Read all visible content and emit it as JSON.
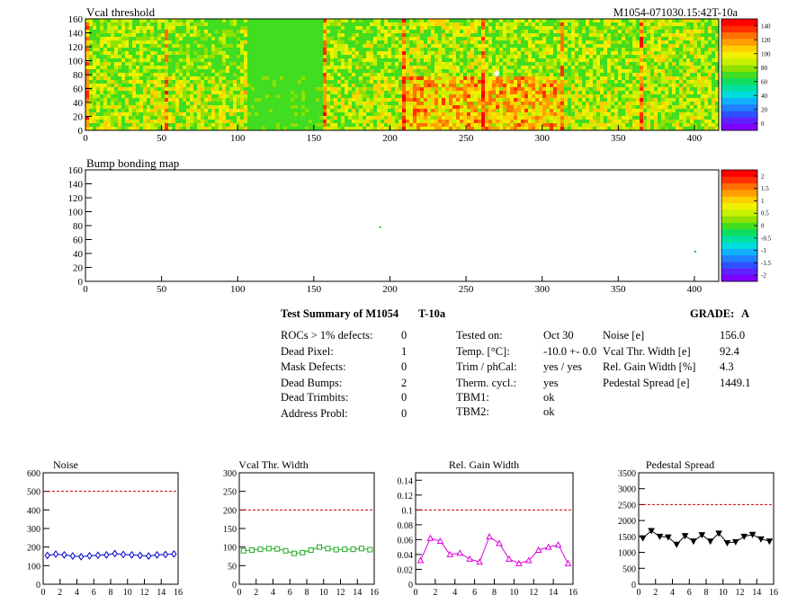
{
  "header": {
    "title": "Vcal threshold",
    "run_id": "M1054-071030.15:42T-10a"
  },
  "bump_map": {
    "title": "Bump bonding map"
  },
  "summary": {
    "title": "Test Summary of M1054",
    "temp_code": "T-10a",
    "grade_label": "GRADE:",
    "grade": "A",
    "left": [
      {
        "label": "ROCs > 1% defects:",
        "value": "0"
      },
      {
        "label": "Dead Pixel:",
        "value": "1"
      },
      {
        "label": "Mask Defects:",
        "value": "0"
      },
      {
        "label": "Dead Bumps:",
        "value": "2"
      },
      {
        "label": "Dead Trimbits:",
        "value": "0"
      },
      {
        "label": "Address Probl:",
        "value": "0"
      }
    ],
    "middle": [
      {
        "label": "Tested on:",
        "value": "Oct 30"
      },
      {
        "label": "Temp. [°C]:",
        "value": "-10.0 +- 0.0"
      },
      {
        "label": "Trim / phCal:",
        "value": "yes / yes"
      },
      {
        "label": "Therm. cycl.:",
        "value": "yes"
      },
      {
        "label": "TBM1:",
        "value": "ok"
      },
      {
        "label": "TBM2:",
        "value": "ok"
      }
    ],
    "right": [
      {
        "label": "Noise [e]",
        "value": "156.0"
      },
      {
        "label": "Vcal Thr. Width [e]",
        "value": "92.4"
      },
      {
        "label": "Rel. Gain Width [%]",
        "value": "4.3"
      },
      {
        "label": "Pedestal Spread [e]",
        "value": "1449.1"
      }
    ]
  },
  "colors": {
    "noise": "#0000cc",
    "vcal": "#22aa22",
    "gain": "#dd00dd",
    "pedestal": "#000000",
    "limit": "#cc0000"
  },
  "chart_data": [
    {
      "type": "heatmap",
      "title": "Vcal threshold",
      "xlim": [
        0,
        416
      ],
      "ylim": [
        0,
        160
      ],
      "xticks": [
        0,
        50,
        100,
        150,
        200,
        250,
        300,
        350,
        400
      ],
      "yticks": [
        0,
        20,
        40,
        60,
        80,
        100,
        120,
        140,
        160
      ],
      "zlim": [
        0,
        150
      ],
      "zticks": [
        0,
        20,
        40,
        60,
        80,
        100,
        120,
        140
      ],
      "grid": false
    },
    {
      "type": "heatmap",
      "title": "Bump bonding map",
      "xlim": [
        0,
        416
      ],
      "ylim": [
        0,
        160
      ],
      "xticks": [
        0,
        50,
        100,
        150,
        200,
        250,
        300,
        350,
        400
      ],
      "yticks": [
        0,
        20,
        40,
        60,
        80,
        100,
        120,
        140,
        160
      ],
      "zlim": [
        -2,
        2
      ],
      "zticks": [
        "-2",
        "-1.5",
        "-1",
        "-0.5",
        "0",
        "0.5",
        "1",
        "1.5",
        "2"
      ],
      "points": [
        {
          "x": 193,
          "y": 79
        },
        {
          "x": 400,
          "y": 44
        }
      ],
      "grid": false
    },
    {
      "type": "line",
      "title": "Noise",
      "xlim": [
        0,
        16
      ],
      "ylim": [
        0,
        600
      ],
      "xticks": [
        0,
        2,
        4,
        6,
        8,
        10,
        12,
        14,
        16
      ],
      "yticks": [
        0,
        100,
        200,
        300,
        400,
        500,
        600
      ],
      "x": [
        0.5,
        1.5,
        2.5,
        3.5,
        4.5,
        5.5,
        6.5,
        7.5,
        8.5,
        9.5,
        10.5,
        11.5,
        12.5,
        13.5,
        14.5,
        15.5
      ],
      "values": [
        155,
        162,
        158,
        152,
        148,
        153,
        156,
        158,
        165,
        160,
        158,
        155,
        152,
        158,
        160,
        163
      ],
      "limit": 500,
      "marker": "diamond"
    },
    {
      "type": "line",
      "title": "Vcal Thr. Width",
      "xlim": [
        0,
        16
      ],
      "ylim": [
        0,
        300
      ],
      "xticks": [
        0,
        2,
        4,
        6,
        8,
        10,
        12,
        14,
        16
      ],
      "yticks": [
        0,
        50,
        100,
        150,
        200,
        250,
        300
      ],
      "x": [
        0.5,
        1.5,
        2.5,
        3.5,
        4.5,
        5.5,
        6.5,
        7.5,
        8.5,
        9.5,
        10.5,
        11.5,
        12.5,
        13.5,
        14.5,
        15.5
      ],
      "values": [
        90,
        92,
        94,
        96,
        95,
        90,
        83,
        85,
        92,
        100,
        96,
        93,
        94,
        94,
        96,
        93
      ],
      "limit": 200,
      "marker": "square"
    },
    {
      "type": "line",
      "title": "Rel. Gain Width",
      "xlim": [
        0,
        16
      ],
      "ylim": [
        0,
        0.15
      ],
      "xticks": [
        0,
        2,
        4,
        6,
        8,
        10,
        12,
        14,
        16
      ],
      "yticks": [
        "0",
        "0.02",
        "0.04",
        "0.06",
        "0.08",
        "0.1",
        "0.12",
        "0.14"
      ],
      "x": [
        0.5,
        1.5,
        2.5,
        3.5,
        4.5,
        5.5,
        6.5,
        7.5,
        8.5,
        9.5,
        10.5,
        11.5,
        12.5,
        13.5,
        14.5,
        15.5
      ],
      "values": [
        0.032,
        0.062,
        0.058,
        0.04,
        0.042,
        0.034,
        0.03,
        0.064,
        0.055,
        0.034,
        0.028,
        0.032,
        0.046,
        0.05,
        0.053,
        0.028
      ],
      "limit": 0.1,
      "marker": "triangle"
    },
    {
      "type": "line",
      "title": "Pedestal Spread",
      "xlim": [
        0,
        16
      ],
      "ylim": [
        0,
        3500
      ],
      "xticks": [
        0,
        2,
        4,
        6,
        8,
        10,
        12,
        14,
        16
      ],
      "yticks": [
        0,
        500,
        1000,
        1500,
        2000,
        2500,
        3000,
        3500
      ],
      "x": [
        0.5,
        1.5,
        2.5,
        3.5,
        4.5,
        5.5,
        6.5,
        7.5,
        8.5,
        9.5,
        10.5,
        11.5,
        12.5,
        13.5,
        14.5,
        15.5
      ],
      "values": [
        1450,
        1680,
        1500,
        1480,
        1250,
        1520,
        1350,
        1550,
        1350,
        1600,
        1300,
        1330,
        1500,
        1560,
        1420,
        1350
      ],
      "limit": 2500,
      "marker": "triangle-down"
    }
  ]
}
